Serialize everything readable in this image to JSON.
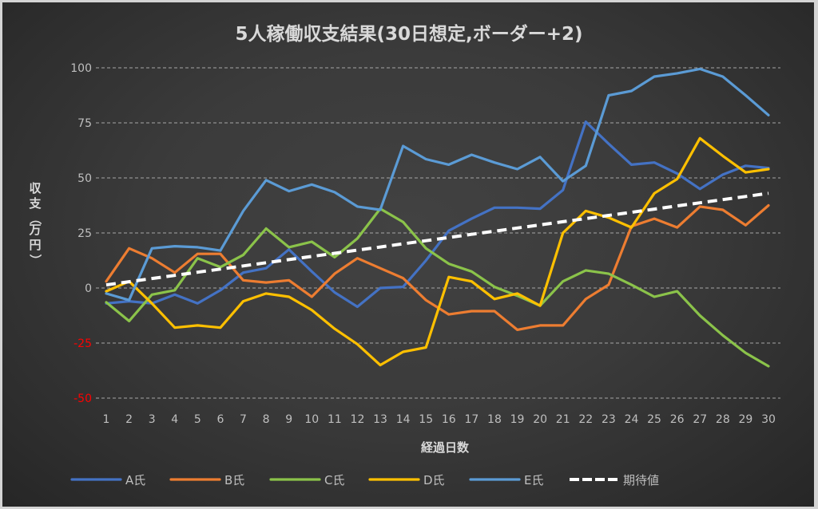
{
  "chart_data": {
    "type": "line",
    "title": "5人稼働収支結果(30日想定,ボーダー+2)",
    "xlabel": "経過日数",
    "ylabel": "収支（万円）",
    "ylim": [
      -50,
      100
    ],
    "yticks": [
      {
        "value": 100,
        "label": "100",
        "color": "#bfbfbf"
      },
      {
        "value": 75,
        "label": "75",
        "color": "#bfbfbf"
      },
      {
        "value": 50,
        "label": "50",
        "color": "#bfbfbf"
      },
      {
        "value": 25,
        "label": "25",
        "color": "#bfbfbf"
      },
      {
        "value": 0,
        "label": "0",
        "color": "#bfbfbf"
      },
      {
        "value": -25,
        "label": "-25",
        "color": "#ff0000"
      },
      {
        "value": -50,
        "label": "-50",
        "color": "#ff0000"
      }
    ],
    "grid": true,
    "legend_position": "bottom",
    "x": [
      1,
      2,
      3,
      4,
      5,
      6,
      7,
      8,
      9,
      10,
      11,
      12,
      13,
      14,
      15,
      16,
      17,
      18,
      19,
      20,
      21,
      22,
      23,
      24,
      25,
      26,
      27,
      28,
      29,
      30
    ],
    "x_tick_labels": [
      "1",
      "2",
      "3",
      "4",
      "5",
      "6",
      "7",
      "8",
      "9",
      "10",
      "11",
      "12",
      "13",
      "14",
      "15",
      "16",
      "17",
      "18",
      "19",
      "20",
      "21",
      "22",
      "23",
      "24",
      "25",
      "26",
      "27",
      "28",
      "29",
      "30"
    ],
    "series": [
      {
        "name": "A氏",
        "color": "#4472c4",
        "dashed": false,
        "values": [
          -7,
          -6,
          -7,
          -3,
          -7,
          -1,
          7,
          9,
          17.5,
          7.5,
          -2,
          -8.5,
          0,
          0.5,
          12.5,
          26,
          31.5,
          36.5,
          36.5,
          36,
          44.5,
          75.5,
          65.5,
          56,
          57,
          52,
          45,
          51.5,
          55.5,
          54.5
        ]
      },
      {
        "name": "B氏",
        "color": "#ed7d31",
        "dashed": false,
        "values": [
          3,
          18,
          13.5,
          7,
          15.5,
          15.5,
          3.5,
          2.5,
          3.5,
          -4,
          6.5,
          13.5,
          9,
          4.5,
          -5.5,
          -12,
          -10.5,
          -10.5,
          -19,
          -17,
          -17,
          -5,
          1.5,
          28,
          31.5,
          27.5,
          37,
          35.5,
          28.5,
          37.5
        ]
      },
      {
        "name": "C氏",
        "color": "#8bc34a",
        "dashed": false,
        "values": [
          -6.5,
          -15,
          -3,
          -1,
          13.5,
          9.5,
          15,
          27,
          18.5,
          21,
          14,
          22.5,
          36,
          30,
          18,
          11,
          7.5,
          0.5,
          -3.5,
          -8,
          3,
          8,
          6.5,
          1.5,
          -4,
          -1.5,
          -12.5,
          -21.5,
          -29.5,
          -35.5
        ]
      },
      {
        "name": "D氏",
        "color": "#ffc000",
        "dashed": false,
        "values": [
          -1.5,
          3,
          -7,
          -18,
          -17,
          -18,
          -6,
          -2.5,
          -4,
          -10,
          -18.5,
          -25.5,
          -35,
          -29,
          -27,
          5,
          3,
          -5,
          -2.5,
          -8,
          25,
          35,
          32,
          27.5,
          43,
          49.5,
          68,
          60,
          52.5,
          54
        ]
      },
      {
        "name": "E氏",
        "color": "#5b9bd5",
        "dashed": false,
        "values": [
          -2.5,
          -5.5,
          18,
          19,
          18.5,
          17,
          35,
          49,
          44,
          47,
          43.5,
          37,
          35.5,
          64.5,
          58.5,
          56,
          60.5,
          57,
          54,
          59.5,
          48.5,
          55.5,
          87.5,
          89.5,
          96,
          97.5,
          99.5,
          96,
          87.5,
          78.5
        ]
      },
      {
        "name": "期待値",
        "color": "#ffffff",
        "dashed": true,
        "values": [
          1.43,
          2.87,
          4.3,
          5.73,
          7.17,
          8.6,
          10.03,
          11.47,
          12.9,
          14.33,
          15.77,
          17.2,
          18.63,
          20.07,
          21.5,
          22.93,
          24.37,
          25.8,
          27.23,
          28.67,
          30.1,
          31.53,
          32.97,
          34.4,
          35.83,
          37.27,
          38.7,
          40.13,
          41.57,
          43
        ]
      }
    ]
  }
}
